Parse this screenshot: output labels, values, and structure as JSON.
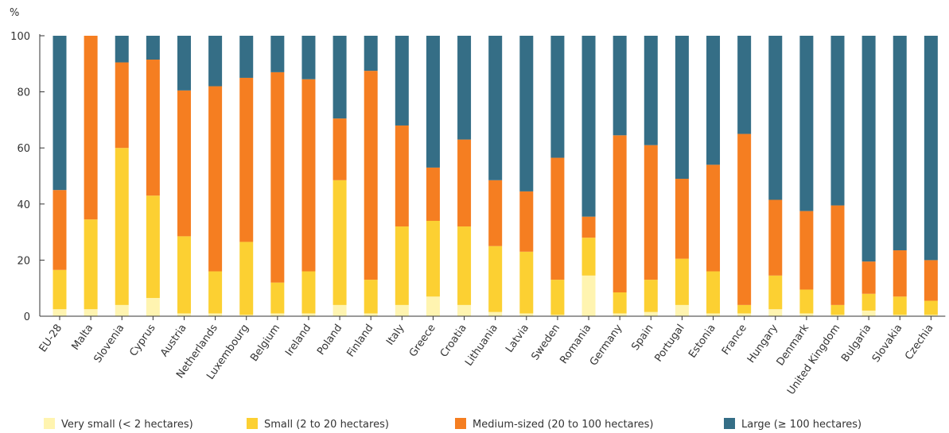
{
  "chart_data": {
    "type": "bar",
    "stacked": true,
    "ylabel": "%",
    "ylim": [
      0,
      100
    ],
    "yticks": [
      "100",
      "80",
      "60",
      "40",
      "20",
      "0"
    ],
    "grid": false,
    "legend_position": "bottom",
    "categories": [
      "EU-28",
      "Malta",
      "Slovenia",
      "Cyprus",
      "Austria",
      "Netherlands",
      "Luxembourg",
      "Belgium",
      "Ireland",
      "Poland",
      "Finland",
      "Italy",
      "Greece",
      "Croatia",
      "Lithuania",
      "Latvia",
      "Sweden",
      "Romania",
      "Germany",
      "Spain",
      "Portugal",
      "Estonia",
      "France",
      "Hungary",
      "Denmark",
      "United Kingdom",
      "Bulgaria",
      "Slovakia",
      "Czechia"
    ],
    "series": [
      {
        "name": "Very small (< 2 hectares)",
        "color": "#fff4b0",
        "values": [
          2.5,
          2.5,
          4,
          6.5,
          1,
          1,
          0.5,
          1,
          1,
          4,
          1,
          4,
          7,
          4,
          1.5,
          1,
          0.5,
          14.5,
          1,
          1.5,
          4,
          1,
          1,
          2.5,
          1,
          0.5,
          2,
          0.5,
          0.5
        ]
      },
      {
        "name": "Small (2 to 20 hectares)",
        "color": "#fcd032",
        "values": [
          14,
          32,
          56,
          36.5,
          27.5,
          15,
          26,
          11,
          15,
          44.5,
          12,
          28,
          27,
          28,
          23.5,
          22,
          12.5,
          13.5,
          7.5,
          11.5,
          16.5,
          15,
          3,
          12,
          8.5,
          3.5,
          6,
          6.5,
          5
        ]
      },
      {
        "name": "Medium-sized (20 to 100 hectares)",
        "color": "#f57e21",
        "values": [
          28.5,
          65.5,
          30.5,
          48.5,
          52,
          66,
          58.5,
          75,
          68.5,
          22,
          74.5,
          36,
          19,
          31,
          23.5,
          21.5,
          43.5,
          7.5,
          56,
          48,
          28.5,
          38,
          61,
          27,
          28,
          35.5,
          11.5,
          16.5,
          14.5
        ]
      },
      {
        "name": "Large (≥ 100 hectares)",
        "color": "#356e86",
        "values": [
          55,
          0,
          9.5,
          8.5,
          19.5,
          18,
          15,
          13,
          15.5,
          29.5,
          12.5,
          32,
          47,
          37,
          51.5,
          55.5,
          43.5,
          64.5,
          35.5,
          39,
          51,
          46,
          35,
          58.5,
          62.5,
          60.5,
          80.5,
          76.5,
          80
        ]
      }
    ]
  }
}
